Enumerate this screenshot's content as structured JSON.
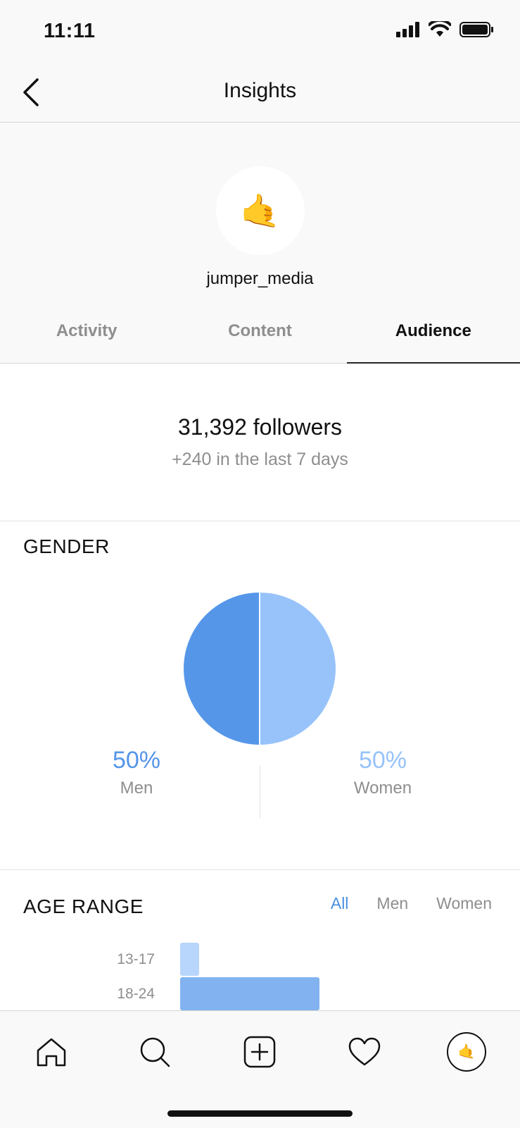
{
  "status": {
    "time": "11:11"
  },
  "nav": {
    "title": "Insights",
    "back_icon": "chevron-left-icon"
  },
  "profile": {
    "avatar_emoji": "🤙",
    "username": "jumper_media"
  },
  "tabs": [
    {
      "label": "Activity",
      "active": false
    },
    {
      "label": "Content",
      "active": false
    },
    {
      "label": "Audience",
      "active": true
    }
  ],
  "followers": {
    "count": "31,392 followers",
    "change": "+240 in the last 7 days"
  },
  "gender": {
    "title": "GENDER",
    "men": {
      "value": "50%",
      "label": "Men",
      "color": "#5596e9"
    },
    "women": {
      "value": "50%",
      "label": "Women",
      "color": "#98c3fa"
    }
  },
  "chart_data": {
    "type": "pie",
    "title": "GENDER",
    "labels": [
      "Men",
      "Women"
    ],
    "values": [
      50,
      50
    ],
    "colors": [
      "#5596e9",
      "#98c3fa"
    ]
  },
  "age": {
    "title": "AGE RANGE",
    "filters": [
      "All",
      "Men",
      "Women"
    ],
    "active_filter": "All",
    "rows": [
      {
        "label": "13-17",
        "color": "#b8d6fb"
      },
      {
        "label": "18-24",
        "color": "#82b3f0"
      }
    ]
  },
  "age_chart_data": {
    "type": "bar",
    "categories": [
      "13-17",
      "18-24"
    ],
    "values": [
      3,
      22
    ]
  },
  "tabbar": {
    "items": [
      "home-icon",
      "search-icon",
      "add-post-icon",
      "heart-icon",
      "profile-avatar"
    ],
    "avatar_emoji": "🤙"
  }
}
